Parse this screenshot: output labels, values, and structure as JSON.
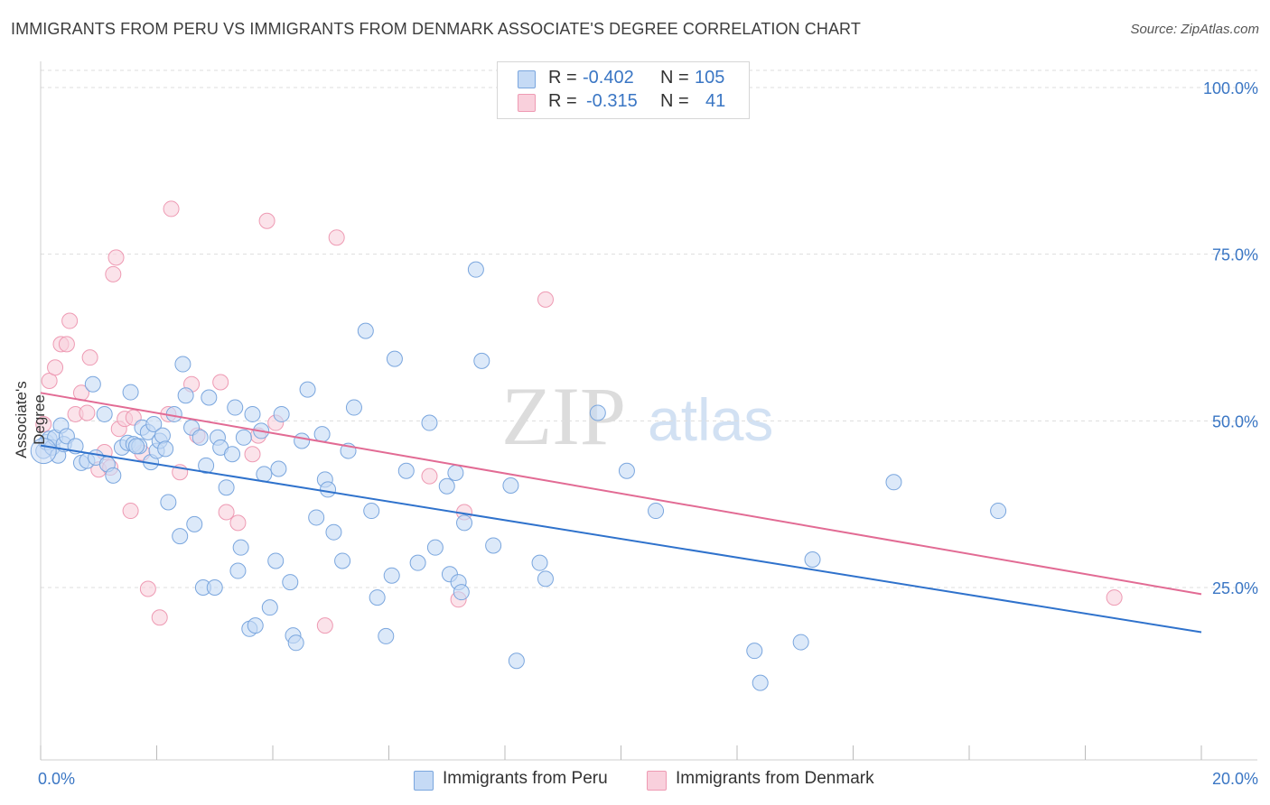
{
  "title": "IMMIGRANTS FROM PERU VS IMMIGRANTS FROM DENMARK ASSOCIATE'S DEGREE CORRELATION CHART",
  "source": "Source: ZipAtlas.com",
  "watermark": {
    "zip": "ZIP",
    "atlas": "atlas"
  },
  "legend": {
    "r_label": "R =",
    "n_label": "N =",
    "peru": {
      "r": "-0.402",
      "n": "105"
    },
    "denmark": {
      "r": "-0.315",
      "n": "41"
    }
  },
  "colors": {
    "peru_fill": "#c5daf5",
    "peru_stroke": "#7aa6de",
    "peru_line": "#2f72cc",
    "denmark_fill": "#f9d0dc",
    "denmark_stroke": "#ee9ab3",
    "denmark_line": "#e26b94",
    "tick_text": "#3a76c4",
    "grid": "#dddddd"
  },
  "chart_data": {
    "type": "scatter",
    "title": "IMMIGRANTS FROM PERU VS IMMIGRANTS FROM DENMARK ASSOCIATE'S DEGREE CORRELATION CHART",
    "xlabel": "",
    "ylabel": "Associate's Degree",
    "xlim": [
      0,
      20
    ],
    "ylim": [
      0,
      102
    ],
    "x_tick_labels": [
      "0.0%",
      "20.0%"
    ],
    "y_ticks": [
      25,
      50,
      75,
      100
    ],
    "y_tick_labels": [
      "25.0%",
      "50.0%",
      "75.0%",
      "100.0%"
    ],
    "grid": true,
    "legend_position": "top-center",
    "series": [
      {
        "name": "Immigrants from Peru",
        "trend": {
          "x": [
            0,
            20
          ],
          "y": [
            46.3,
            18.3
          ]
        },
        "points": [
          [
            0.05,
            45.5
          ],
          [
            0.1,
            46.8
          ],
          [
            0.15,
            47.3
          ],
          [
            0.2,
            46
          ],
          [
            0.25,
            47.5
          ],
          [
            0.3,
            44.8
          ],
          [
            0.35,
            49.3
          ],
          [
            0.4,
            46.5
          ],
          [
            0.45,
            47.7
          ],
          [
            0.6,
            46.2
          ],
          [
            0.7,
            43.7
          ],
          [
            0.8,
            44
          ],
          [
            0.9,
            55.5
          ],
          [
            0.95,
            44.5
          ],
          [
            1.1,
            51
          ],
          [
            1.15,
            43.5
          ],
          [
            1.25,
            41.8
          ],
          [
            1.4,
            46
          ],
          [
            1.5,
            46.7
          ],
          [
            1.55,
            54.3
          ],
          [
            1.6,
            46.5
          ],
          [
            1.7,
            46.2
          ],
          [
            1.75,
            49
          ],
          [
            1.85,
            48.3
          ],
          [
            1.9,
            43.8
          ],
          [
            1.95,
            49.5
          ],
          [
            2.0,
            45.5
          ],
          [
            2.05,
            47
          ],
          [
            2.1,
            47.8
          ],
          [
            2.2,
            37.8
          ],
          [
            2.3,
            51
          ],
          [
            2.4,
            32.7
          ],
          [
            2.45,
            58.5
          ],
          [
            2.5,
            53.8
          ],
          [
            2.6,
            49
          ],
          [
            2.65,
            34.5
          ],
          [
            2.75,
            47.5
          ],
          [
            2.8,
            25
          ],
          [
            2.85,
            43.3
          ],
          [
            2.9,
            53.5
          ],
          [
            3.0,
            25
          ],
          [
            3.05,
            47.5
          ],
          [
            3.1,
            46
          ],
          [
            3.2,
            40
          ],
          [
            3.3,
            45
          ],
          [
            3.35,
            52
          ],
          [
            3.4,
            27.5
          ],
          [
            3.45,
            31
          ],
          [
            3.5,
            47.5
          ],
          [
            3.6,
            18.8
          ],
          [
            3.65,
            51
          ],
          [
            3.7,
            19.3
          ],
          [
            3.8,
            48.5
          ],
          [
            3.85,
            42
          ],
          [
            3.95,
            22
          ],
          [
            4.05,
            29
          ],
          [
            4.1,
            42.8
          ],
          [
            4.15,
            51
          ],
          [
            4.3,
            25.8
          ],
          [
            4.35,
            17.8
          ],
          [
            4.4,
            16.7
          ],
          [
            4.5,
            47
          ],
          [
            4.6,
            54.7
          ],
          [
            4.75,
            35.5
          ],
          [
            4.85,
            48
          ],
          [
            4.9,
            41.2
          ],
          [
            4.95,
            39.7
          ],
          [
            5.05,
            33.3
          ],
          [
            5.2,
            29
          ],
          [
            5.4,
            52
          ],
          [
            5.6,
            63.5
          ],
          [
            5.7,
            36.5
          ],
          [
            5.8,
            23.5
          ],
          [
            5.95,
            17.7
          ],
          [
            6.05,
            26.8
          ],
          [
            6.1,
            59.3
          ],
          [
            6.3,
            42.5
          ],
          [
            6.5,
            28.7
          ],
          [
            6.7,
            49.7
          ],
          [
            6.8,
            31
          ],
          [
            7.0,
            40.2
          ],
          [
            7.05,
            27
          ],
          [
            7.15,
            42.2
          ],
          [
            7.2,
            25.8
          ],
          [
            7.25,
            24.3
          ],
          [
            7.3,
            34.7
          ],
          [
            7.5,
            72.7
          ],
          [
            7.6,
            59
          ],
          [
            7.8,
            31.3
          ],
          [
            8.1,
            40.3
          ],
          [
            8.2,
            14
          ],
          [
            8.6,
            28.7
          ],
          [
            8.7,
            26.3
          ],
          [
            9.6,
            51.2
          ],
          [
            10.1,
            42.5
          ],
          [
            10.6,
            36.5
          ],
          [
            12.3,
            15.5
          ],
          [
            12.4,
            10.7
          ],
          [
            13.1,
            16.8
          ],
          [
            13.3,
            29.2
          ],
          [
            14.7,
            40.8
          ],
          [
            16.5,
            36.5
          ],
          [
            1.65,
            46.2
          ],
          [
            2.15,
            45.8
          ],
          [
            5.3,
            45.5
          ]
        ]
      },
      {
        "name": "Immigrants from Denmark",
        "trend": {
          "x": [
            0,
            20
          ],
          "y": [
            54.2,
            24
          ]
        },
        "points": [
          [
            0.05,
            49.5
          ],
          [
            0.15,
            56
          ],
          [
            0.25,
            58
          ],
          [
            0.35,
            61.5
          ],
          [
            0.45,
            61.5
          ],
          [
            0.5,
            65
          ],
          [
            0.6,
            51
          ],
          [
            0.7,
            54.2
          ],
          [
            0.8,
            51.2
          ],
          [
            0.85,
            59.5
          ],
          [
            1.0,
            42.7
          ],
          [
            1.1,
            45.3
          ],
          [
            1.2,
            43
          ],
          [
            1.25,
            72
          ],
          [
            1.3,
            74.5
          ],
          [
            1.35,
            48.8
          ],
          [
            1.45,
            50.3
          ],
          [
            1.55,
            36.5
          ],
          [
            1.6,
            50.5
          ],
          [
            1.75,
            45.2
          ],
          [
            1.85,
            24.8
          ],
          [
            2.05,
            20.5
          ],
          [
            2.2,
            51
          ],
          [
            2.25,
            81.8
          ],
          [
            2.4,
            42.3
          ],
          [
            2.6,
            55.5
          ],
          [
            2.7,
            47.8
          ],
          [
            3.1,
            55.8
          ],
          [
            3.2,
            36.3
          ],
          [
            3.4,
            34.7
          ],
          [
            3.65,
            45
          ],
          [
            3.75,
            47.8
          ],
          [
            3.9,
            80
          ],
          [
            4.05,
            49.7
          ],
          [
            4.9,
            19.3
          ],
          [
            5.1,
            77.5
          ],
          [
            6.7,
            41.7
          ],
          [
            7.2,
            23.2
          ],
          [
            7.3,
            36.3
          ],
          [
            8.7,
            68.2
          ],
          [
            18.5,
            23.5
          ]
        ]
      }
    ]
  }
}
